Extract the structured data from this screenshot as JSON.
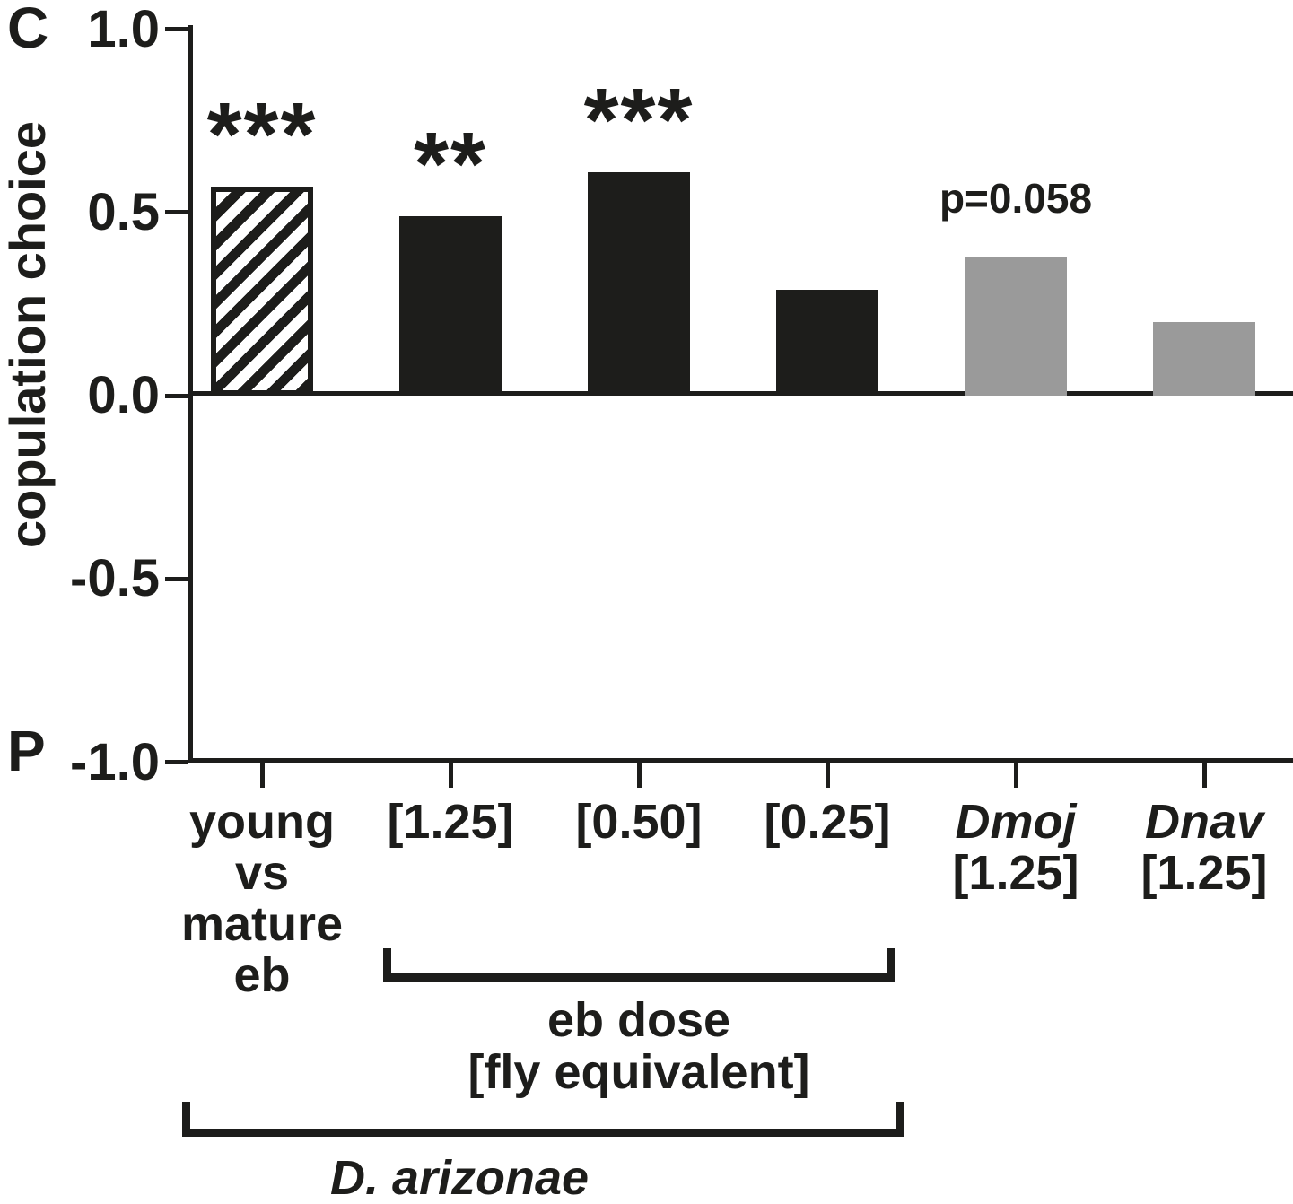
{
  "chart_data": {
    "type": "bar",
    "title": "",
    "ylabel": "copulation choice",
    "xlabel": "",
    "ylim": [
      -1.0,
      1.0
    ],
    "grid": false,
    "legend": null,
    "axis_end_labels": {
      "top": "C",
      "bottom": "P"
    },
    "yticks": [
      {
        "label": "1.0",
        "value": 1.0
      },
      {
        "label": "0.5",
        "value": 0.5
      },
      {
        "label": "0.0",
        "value": 0.0
      },
      {
        "label": "-0.5",
        "value": -0.5
      },
      {
        "label": "-1.0",
        "value": -1.0
      }
    ],
    "categories": [
      {
        "id": "young-vs-mature-eb",
        "lines": [
          {
            "text": "young"
          },
          {
            "text": "vs"
          },
          {
            "text": "mature"
          },
          {
            "text": "eb"
          }
        ]
      },
      {
        "id": "eb-1-25",
        "lines": [
          {
            "text": "[1.25]"
          }
        ]
      },
      {
        "id": "eb-0-50",
        "lines": [
          {
            "text": "[0.50]"
          }
        ]
      },
      {
        "id": "eb-0-25",
        "lines": [
          {
            "text": "[0.25]"
          }
        ]
      },
      {
        "id": "dmoj-1-25",
        "lines": [
          {
            "text": "Dmoj",
            "italic": true
          },
          {
            "text": "[1.25]"
          }
        ]
      },
      {
        "id": "dnav-1-25",
        "lines": [
          {
            "text": "Dnav",
            "italic": true
          },
          {
            "text": "[1.25]"
          }
        ]
      }
    ],
    "series": [
      {
        "name": "copulation choice",
        "values": [
          0.57,
          0.49,
          0.61,
          0.29,
          0.38,
          0.2
        ]
      }
    ],
    "bar_styles": [
      "hatched",
      "black",
      "black",
      "black",
      "gray",
      "gray"
    ],
    "annotations": [
      {
        "bar": 0,
        "kind": "stars",
        "text": "***"
      },
      {
        "bar": 1,
        "kind": "stars",
        "text": "**"
      },
      {
        "bar": 2,
        "kind": "stars",
        "text": "***"
      },
      {
        "bar": 4,
        "kind": "pvalue",
        "text": "p=0.058"
      }
    ],
    "brackets": [
      {
        "label_lines": [
          "eb dose",
          "[fly equivalent]"
        ],
        "from_bar": 1,
        "to_bar": 3,
        "italic": false
      },
      {
        "label_lines": [
          "D. arizonae"
        ],
        "from_bar": 0,
        "to_bar": 3,
        "italic": true
      }
    ],
    "colors": {
      "black": "#1d1d1b",
      "gray": "#9a9a9a",
      "background": "#ffffff"
    }
  }
}
